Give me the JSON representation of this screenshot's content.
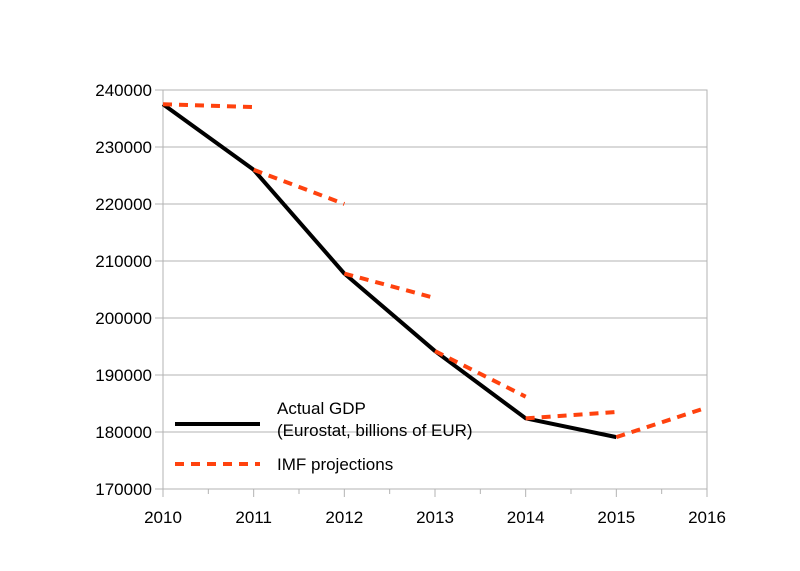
{
  "chart_data": {
    "type": "line",
    "x": [
      2010,
      2011,
      2012,
      2013,
      2014,
      2015,
      2016
    ],
    "xlim": [
      2010,
      2016
    ],
    "ylim": [
      170000,
      240000
    ],
    "y_ticks": [
      "170000",
      "180000",
      "190000",
      "200000",
      "210000",
      "220000",
      "230000",
      "240000"
    ],
    "x_ticks": [
      "2010",
      "2011",
      "2012",
      "2013",
      "2014",
      "2015",
      "2016"
    ],
    "grid": "horizontal",
    "legend_position": "bottom-left inside plot",
    "series": [
      {
        "name": "Actual GDP\n(Eurostat, billions of EUR)",
        "name_lines": [
          "Actual GDP",
          "(Eurostat, billions of EUR)"
        ],
        "color": "#000000",
        "style": "solid",
        "points": [
          [
            2010,
            237500
          ],
          [
            2011,
            226000
          ],
          [
            2012,
            207800
          ],
          [
            2013,
            194200
          ],
          [
            2014,
            182400
          ],
          [
            2015,
            179100
          ]
        ]
      },
      {
        "name": "IMF projections",
        "color": "#ff420e",
        "style": "dashed",
        "segments": [
          [
            [
              2010,
              237500
            ],
            [
              2011,
              237000
            ]
          ],
          [
            [
              2011,
              226000
            ],
            [
              2012,
              220000
            ]
          ],
          [
            [
              2012,
              207800
            ],
            [
              2013,
              203500
            ]
          ],
          [
            [
              2013,
              194200
            ],
            [
              2014,
              186200
            ]
          ],
          [
            [
              2014,
              182400
            ],
            [
              2015,
              183500
            ]
          ],
          [
            [
              2015,
              179100
            ],
            [
              2016,
              184300
            ]
          ]
        ]
      }
    ]
  }
}
